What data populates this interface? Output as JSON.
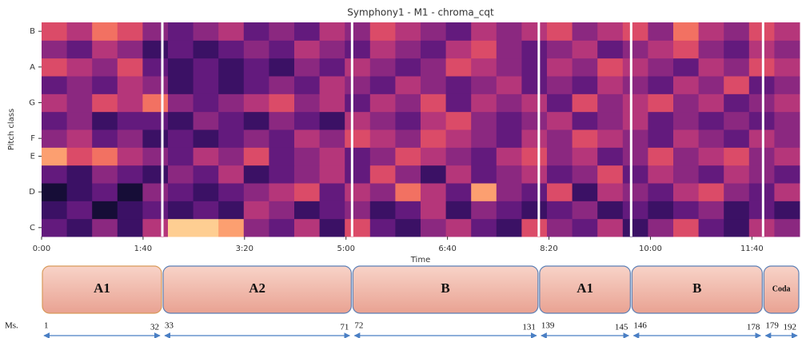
{
  "chart_data": {
    "type": "heatmap",
    "title": "Symphony1 - M1 - chroma_cqt",
    "xlabel": "Time",
    "ylabel": "Pitch class",
    "colormap": "magma",
    "categories": [
      "C",
      null,
      "D",
      null,
      "E",
      "F",
      null,
      "G",
      null,
      "A",
      null,
      "B"
    ],
    "xlim": [
      0,
      747
    ],
    "xticks": [
      {
        "value": 0,
        "label": "0:00"
      },
      {
        "value": 100,
        "label": "1:40"
      },
      {
        "value": 200,
        "label": "3:20"
      },
      {
        "value": 300,
        "label": "5:00"
      },
      {
        "value": 400,
        "label": "6:40"
      },
      {
        "value": 500,
        "label": "8:20"
      },
      {
        "value": 600,
        "label": "10:00"
      },
      {
        "value": 700,
        "label": "11:40"
      }
    ],
    "z": [
      [
        0.3,
        0.2,
        0.4,
        0.2,
        0.5,
        0.9,
        0.9,
        0.8,
        0.4,
        0.3,
        0.5,
        0.2,
        0.6,
        0.3,
        0.2,
        0.4,
        0.5,
        0.3,
        0.2,
        0.6,
        0.4,
        0.3,
        0.5,
        0.2,
        0.4,
        0.6,
        0.3,
        0.2,
        0.5,
        0.4
      ],
      [
        0.2,
        0.3,
        0.1,
        0.2,
        0.3,
        0.2,
        0.3,
        0.2,
        0.5,
        0.4,
        0.2,
        0.3,
        0.4,
        0.2,
        0.3,
        0.5,
        0.2,
        0.4,
        0.3,
        0.2,
        0.3,
        0.4,
        0.2,
        0.3,
        0.2,
        0.3,
        0.4,
        0.2,
        0.3,
        0.2
      ],
      [
        0.1,
        0.2,
        0.3,
        0.1,
        0.4,
        0.3,
        0.2,
        0.3,
        0.4,
        0.5,
        0.6,
        0.3,
        0.5,
        0.4,
        0.7,
        0.5,
        0.3,
        0.8,
        0.4,
        0.3,
        0.6,
        0.2,
        0.5,
        0.4,
        0.3,
        0.5,
        0.6,
        0.4,
        0.3,
        0.5
      ],
      [
        0.3,
        0.2,
        0.4,
        0.3,
        0.2,
        0.4,
        0.3,
        0.5,
        0.2,
        0.3,
        0.4,
        0.5,
        0.3,
        0.6,
        0.4,
        0.2,
        0.5,
        0.3,
        0.4,
        0.5,
        0.3,
        0.4,
        0.6,
        0.3,
        0.5,
        0.4,
        0.3,
        0.5,
        0.4,
        0.3
      ],
      [
        0.8,
        0.6,
        0.7,
        0.5,
        0.4,
        0.3,
        0.5,
        0.4,
        0.6,
        0.3,
        0.4,
        0.5,
        0.3,
        0.4,
        0.6,
        0.5,
        0.4,
        0.3,
        0.5,
        0.6,
        0.4,
        0.5,
        0.3,
        0.4,
        0.6,
        0.4,
        0.5,
        0.6,
        0.4,
        0.5
      ],
      [
        0.4,
        0.5,
        0.3,
        0.4,
        0.2,
        0.3,
        0.2,
        0.3,
        0.4,
        0.3,
        0.5,
        0.4,
        0.6,
        0.5,
        0.4,
        0.6,
        0.5,
        0.4,
        0.3,
        0.5,
        0.4,
        0.6,
        0.5,
        0.4,
        0.3,
        0.5,
        0.4,
        0.3,
        0.5,
        0.4
      ],
      [
        0.3,
        0.4,
        0.2,
        0.3,
        0.3,
        0.2,
        0.4,
        0.3,
        0.2,
        0.4,
        0.3,
        0.2,
        0.5,
        0.4,
        0.3,
        0.5,
        0.6,
        0.4,
        0.3,
        0.4,
        0.5,
        0.3,
        0.4,
        0.5,
        0.3,
        0.4,
        0.3,
        0.4,
        0.3,
        0.4
      ],
      [
        0.5,
        0.4,
        0.6,
        0.5,
        0.7,
        0.4,
        0.3,
        0.4,
        0.5,
        0.6,
        0.4,
        0.5,
        0.3,
        0.5,
        0.4,
        0.6,
        0.3,
        0.5,
        0.4,
        0.5,
        0.3,
        0.6,
        0.4,
        0.5,
        0.6,
        0.4,
        0.5,
        0.3,
        0.4,
        0.5
      ],
      [
        0.3,
        0.4,
        0.3,
        0.5,
        0.4,
        0.2,
        0.3,
        0.2,
        0.3,
        0.4,
        0.3,
        0.5,
        0.4,
        0.3,
        0.5,
        0.4,
        0.3,
        0.4,
        0.5,
        0.3,
        0.4,
        0.3,
        0.5,
        0.4,
        0.3,
        0.5,
        0.4,
        0.6,
        0.3,
        0.4
      ],
      [
        0.6,
        0.5,
        0.4,
        0.6,
        0.3,
        0.2,
        0.3,
        0.2,
        0.3,
        0.2,
        0.4,
        0.3,
        0.5,
        0.4,
        0.3,
        0.4,
        0.6,
        0.5,
        0.4,
        0.3,
        0.5,
        0.4,
        0.6,
        0.5,
        0.4,
        0.3,
        0.5,
        0.4,
        0.6,
        0.5
      ],
      [
        0.4,
        0.3,
        0.5,
        0.4,
        0.2,
        0.3,
        0.2,
        0.3,
        0.4,
        0.3,
        0.5,
        0.4,
        0.3,
        0.5,
        0.4,
        0.3,
        0.5,
        0.6,
        0.4,
        0.3,
        0.4,
        0.5,
        0.3,
        0.4,
        0.5,
        0.6,
        0.4,
        0.3,
        0.5,
        0.4
      ],
      [
        0.6,
        0.5,
        0.7,
        0.6,
        0.4,
        0.3,
        0.4,
        0.5,
        0.3,
        0.4,
        0.3,
        0.5,
        0.4,
        0.6,
        0.5,
        0.4,
        0.3,
        0.5,
        0.4,
        0.5,
        0.6,
        0.4,
        0.5,
        0.6,
        0.4,
        0.7,
        0.5,
        0.4,
        0.6,
        0.5
      ]
    ],
    "measures_label": "Ms.",
    "sections": [
      {
        "label": "A1",
        "start": 0,
        "end": 119,
        "measure_start": 1,
        "measure_end": 32
      },
      {
        "label": "A2",
        "start": 119,
        "end": 306,
        "measure_start": 33,
        "measure_end": 71
      },
      {
        "label": "B",
        "start": 306,
        "end": 490,
        "measure_start": 72,
        "measure_end": 131
      },
      {
        "label": "A1",
        "start": 490,
        "end": 581,
        "measure_start": 139,
        "measure_end": 145
      },
      {
        "label": "B",
        "start": 581,
        "end": 711,
        "measure_start": 146,
        "measure_end": 178
      },
      {
        "label": "Coda",
        "start": 711,
        "end": 747,
        "measure_start": 179,
        "measure_end": 192
      }
    ]
  }
}
